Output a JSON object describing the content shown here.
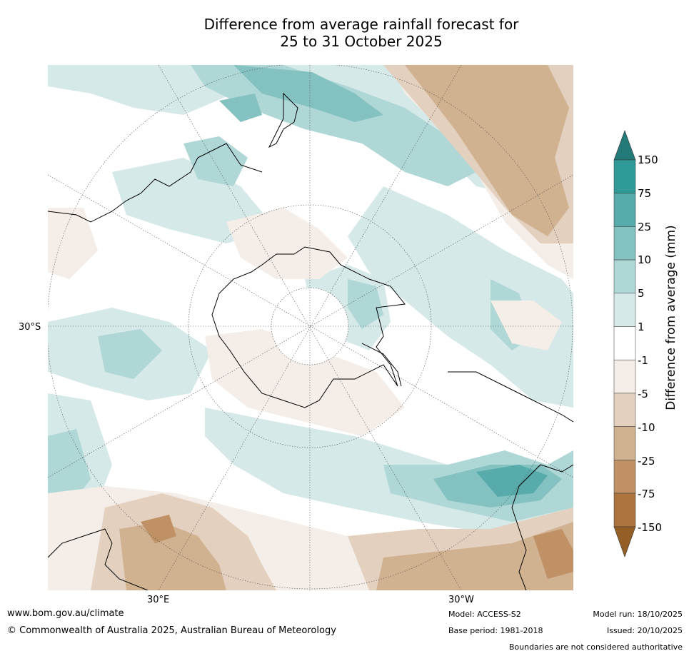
{
  "title": {
    "line1": "Difference from average rainfall forecast for",
    "line2": "25 to 31 October 2025"
  },
  "map": {
    "projection": "south-polar-stereographic",
    "lat_label": "30°S",
    "lon_labels": [
      "30°E",
      "30°W"
    ]
  },
  "colorbar": {
    "label": "Difference from average (mm)",
    "ticks": [
      "150",
      "75",
      "25",
      "10",
      "5",
      "1",
      "-1",
      "-5",
      "-10",
      "-25",
      "-75",
      "-150"
    ],
    "colors": {
      "gt150": "#247a78",
      "75_150": "#2f9a97",
      "25_75": "#58abab",
      "10_25": "#83c2c1",
      "5_10": "#afd7d6",
      "1_5": "#d5e9e8",
      "m1_1": "#ffffff",
      "m5_m1": "#f4ede8",
      "m10_m5": "#e3d0bf",
      "m25_m10": "#d0b190",
      "m75_m25": "#bf9165",
      "m150_m75": "#ad743f",
      "lt_m150": "#945f26"
    }
  },
  "footer": {
    "url": "www.bom.gov.au/climate",
    "copyright": "© Commonwealth of Australia 2025, Australian Bureau of Meteorology",
    "model": "Model: ACCESS-S2",
    "base_period": "Base period: 1981-2018",
    "model_run": "Model run: 18/10/2025",
    "issued": "Issued: 20/10/2025",
    "disclaimer": "Boundaries are not considered authoritative"
  }
}
